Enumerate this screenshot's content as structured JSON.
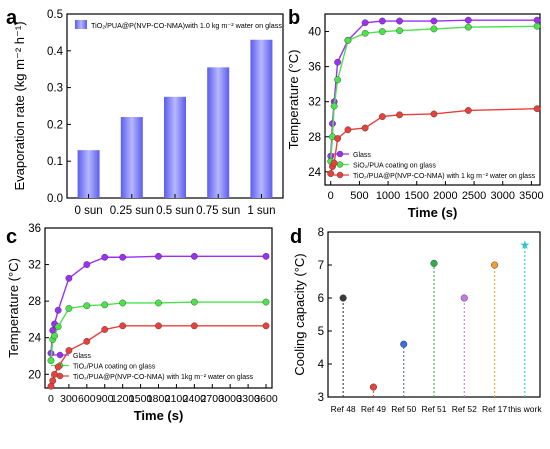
{
  "chart_data": [
    {
      "panel": "a",
      "type": "bar",
      "ylabel": "Evaporation rate (kg m⁻² h⁻¹)",
      "ylim": [
        0.0,
        0.5
      ],
      "yticks": [
        "0.0",
        "0.1",
        "0.2",
        "0.3",
        "0.4",
        "0.5"
      ],
      "categories": [
        "0 sun",
        "0.25 sun",
        "0.5 sun",
        "0.75 sun",
        "1 sun"
      ],
      "series": [
        {
          "name": "TiO₂/PUA@P(NVP-CO-NMA)with 1.0 kg m⁻² water on glass",
          "values": [
            0.13,
            0.22,
            0.275,
            0.355,
            0.43
          ]
        }
      ],
      "grid": false,
      "legend": "top-left"
    },
    {
      "panel": "b",
      "type": "line",
      "xlabel": "Time (s)",
      "ylabel": "Temperature (°C)",
      "xlim": [
        -100,
        3650
      ],
      "ylim": [
        22.5,
        42
      ],
      "xticks": [
        "0",
        "500",
        "1000",
        "1500",
        "2000",
        "2500",
        "3000",
        "3500"
      ],
      "yticks": [
        "24",
        "28",
        "32",
        "36",
        "40"
      ],
      "series": [
        {
          "name": "Glass",
          "color": "#9b30f2",
          "x": [
            0,
            30,
            60,
            120,
            300,
            600,
            900,
            1200,
            1800,
            2400,
            3600
          ],
          "y": [
            25.8,
            29.5,
            32.0,
            36.5,
            39.0,
            41.0,
            41.2,
            41.2,
            41.2,
            41.3,
            41.3
          ]
        },
        {
          "name": "SiO₂/PUA coating on glass",
          "color": "#4be34b",
          "x": [
            0,
            30,
            60,
            120,
            300,
            600,
            900,
            1200,
            1800,
            2400,
            3600
          ],
          "y": [
            25.2,
            28.0,
            31.5,
            34.5,
            39.0,
            39.8,
            40.0,
            40.1,
            40.3,
            40.5,
            40.6
          ]
        },
        {
          "name": "TiO₂/PUA@P(NVP-CO-NMA) with 1 kg m⁻² water on glass",
          "color": "#e8403a",
          "x": [
            0,
            30,
            60,
            120,
            300,
            600,
            900,
            1200,
            1800,
            2400,
            3600
          ],
          "y": [
            23.8,
            24.6,
            25.0,
            27.8,
            28.8,
            29.0,
            30.3,
            30.5,
            30.6,
            31.0,
            31.2
          ]
        }
      ],
      "grid": false,
      "legend": "bottom-left"
    },
    {
      "panel": "c",
      "type": "line",
      "xlabel": "Time (s)",
      "ylabel": "Temperature (°C)",
      "xlim": [
        -100,
        3700
      ],
      "ylim": [
        18.5,
        36
      ],
      "xticks": [
        "0",
        "300",
        "600",
        "900",
        "1200",
        "1500",
        "1800",
        "2100",
        "2400",
        "2700",
        "3000",
        "3300",
        "3600"
      ],
      "yticks": [
        "20",
        "24",
        "28",
        "32",
        "36"
      ],
      "series": [
        {
          "name": "Glass",
          "color": "#9b30f2",
          "x": [
            0,
            30,
            60,
            120,
            300,
            600,
            900,
            1200,
            1800,
            2400,
            3600
          ],
          "y": [
            22.3,
            24.8,
            25.5,
            27.0,
            30.5,
            32.0,
            32.8,
            32.8,
            32.9,
            32.9,
            32.9
          ]
        },
        {
          "name": "TiO₂/PUA coating on glass",
          "color": "#4be34b",
          "x": [
            0,
            30,
            60,
            120,
            300,
            600,
            900,
            1200,
            1800,
            2400,
            3600
          ],
          "y": [
            21.5,
            23.8,
            24.2,
            25.2,
            27.2,
            27.5,
            27.6,
            27.8,
            27.8,
            27.9,
            27.9
          ]
        },
        {
          "name": "TiO₂/PUA@P(NVP-CO-NMA) with 1kg m⁻² water on glass",
          "color": "#e8403a",
          "x": [
            0,
            30,
            60,
            120,
            300,
            600,
            900,
            1200,
            1800,
            2400,
            3600
          ],
          "y": [
            18.7,
            19.3,
            20.0,
            20.8,
            22.6,
            23.6,
            24.9,
            25.3,
            25.3,
            25.3,
            25.3
          ]
        }
      ],
      "grid": false,
      "legend": "bottom-left"
    },
    {
      "panel": "d",
      "type": "scatter",
      "ylabel": "Cooling capacity (°C)",
      "ylim": [
        3,
        8
      ],
      "yticks": [
        "3",
        "4",
        "5",
        "6",
        "7",
        "8"
      ],
      "categories": [
        "Ref 48",
        "Ref 49",
        "Ref 50",
        "Ref 51",
        "Ref 52",
        "Ref 17",
        "this work"
      ],
      "values": [
        6.0,
        3.3,
        4.6,
        7.05,
        6.0,
        7.0,
        7.6
      ],
      "colors": [
        "#3a3a3a",
        "#e8403a",
        "#3a6fd8",
        "#2eae4a",
        "#c77ae6",
        "#f0a030",
        "#2fc6c6"
      ],
      "markers": [
        "circle",
        "circle",
        "circle",
        "circle",
        "circle",
        "circle",
        "star"
      ],
      "grid": false
    }
  ],
  "panel_labels": {
    "a": "a",
    "b": "b",
    "c": "c",
    "d": "d"
  }
}
